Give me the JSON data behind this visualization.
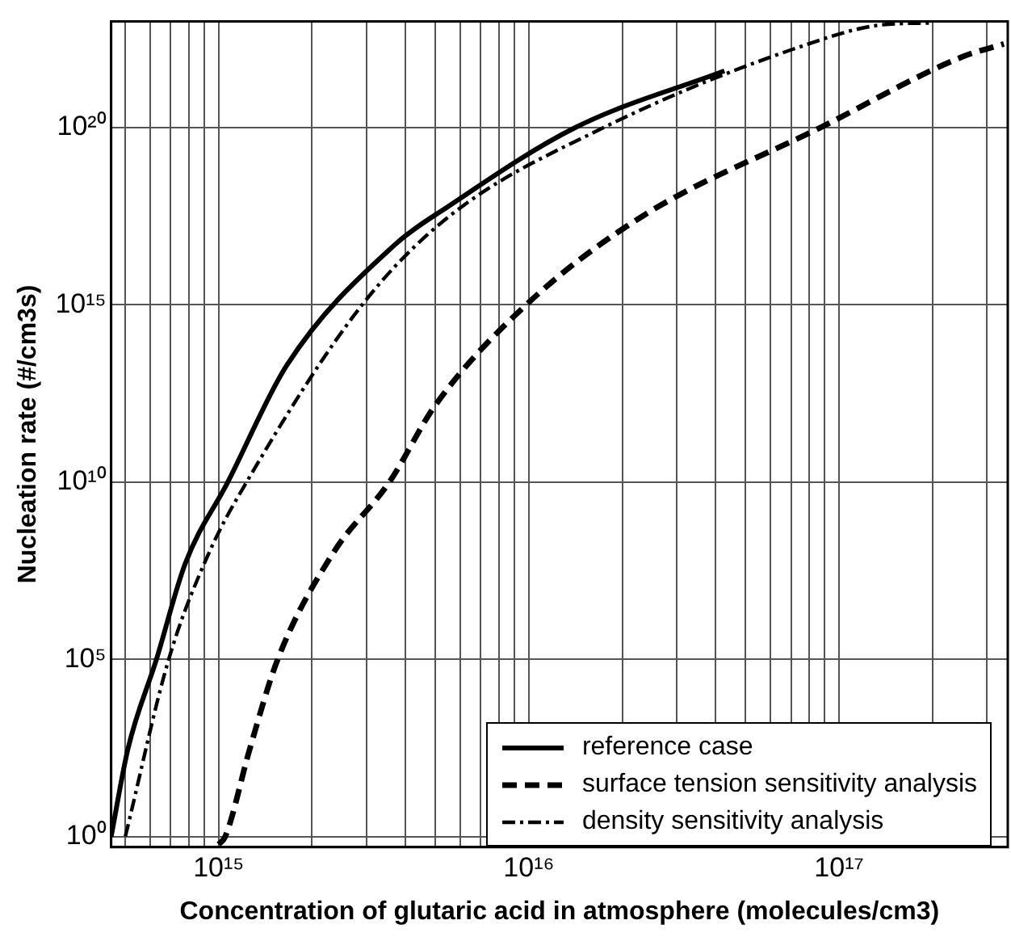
{
  "chart_data": {
    "type": "line",
    "xlabel": "Concentration of glutaric acid in atmosphere (molecules/cm3)",
    "ylabel": "Nucleation rate (#/cm3s)",
    "log": "xy",
    "grid": true,
    "legend": "bottom right",
    "marker": "none",
    "xlim": [
      450000000000000.0,
      3.5e+17
    ],
    "ylim": [
      0.5,
      1e+23
    ],
    "xticks": [
      {
        "value": 500000000000000.0,
        "label": null
      },
      {
        "value": 600000000000000.0,
        "label": null
      },
      {
        "value": 700000000000000.0,
        "label": null
      },
      {
        "value": 800000000000000.0,
        "label": null
      },
      {
        "value": 900000000000000.0,
        "label": null
      },
      {
        "value": 1000000000000000.0,
        "label": "10¹⁵"
      },
      {
        "value": 2000000000000000.0,
        "label": null
      },
      {
        "value": 3000000000000000.0,
        "label": null
      },
      {
        "value": 4000000000000000.0,
        "label": null
      },
      {
        "value": 5000000000000000.0,
        "label": null
      },
      {
        "value": 6000000000000000.0,
        "label": null
      },
      {
        "value": 7000000000000000.0,
        "label": null
      },
      {
        "value": 8000000000000000.0,
        "label": null
      },
      {
        "value": 9000000000000000.0,
        "label": null
      },
      {
        "value": 1e+16,
        "label": "10¹⁶"
      },
      {
        "value": 2e+16,
        "label": null
      },
      {
        "value": 3e+16,
        "label": null
      },
      {
        "value": 4e+16,
        "label": null
      },
      {
        "value": 5e+16,
        "label": null
      },
      {
        "value": 6e+16,
        "label": null
      },
      {
        "value": 7e+16,
        "label": null
      },
      {
        "value": 8e+16,
        "label": null
      },
      {
        "value": 9e+16,
        "label": null
      },
      {
        "value": 1e+17,
        "label": "10¹⁷"
      },
      {
        "value": 2e+17,
        "label": null
      },
      {
        "value": 3e+17,
        "label": null
      }
    ],
    "yticks": [
      {
        "value": 1,
        "label": "10⁰"
      },
      {
        "value": 100000.0,
        "label": "10⁵"
      },
      {
        "value": 10000000000.0,
        "label": "10¹⁰"
      },
      {
        "value": 1000000000000000.0,
        "label": "10¹⁵"
      },
      {
        "value": 1e+20,
        "label": "10²⁰"
      }
    ],
    "series": [
      {
        "name": "reference case",
        "color": "#000000",
        "line_style": "solid",
        "x": [
          450000000000000.0,
          510000000000000.0,
          630000000000000.0,
          780000000000000.0,
          1070000000000000.0,
          1660000000000000.0,
          3700000000000000.0,
          5500000000000000.0,
          1.41e+16,
          4.27e+16
        ],
        "values": [
          1,
          300.0,
          100000.0,
          50000000.0,
          10000000000.0,
          20000000000000.0,
          5e+16,
          6e+17,
          1e+20,
          4e+21
        ]
      },
      {
        "name": "surface tension sensitivity analysis",
        "color": "#000000",
        "line_style": "dashed",
        "x": [
          1000000000000000.0,
          1050000000000000.0,
          1260000000000000.0,
          1550000000000000.0,
          2340000000000000.0,
          3550000000000000.0,
          5000000000000000.0,
          9800000000000000.0,
          2.3e+16,
          8.7e+16,
          2.5e+17,
          3.4e+17
        ],
        "values": [
          0.6,
          1,
          300.0,
          100000.0,
          100000000.0,
          10000000000.0,
          1500000000000.0,
          1000000000000000.0,
          3e+17,
          1e+20,
          1e+22,
          2.3e+22
        ]
      },
      {
        "name": "density sensitivity analysis",
        "color": "#000000",
        "line_style": "dashdot",
        "x": [
          500000000000000.0,
          690000000000000.0,
          930000000000000.0,
          1230000000000000.0,
          2900000000000000.0,
          5500000000000000.0,
          1.74e+16,
          7.6e+16,
          1.38e+17,
          2e+17
        ],
        "values": [
          1,
          100000.0,
          100000000.0,
          10000000000.0,
          1000000000000000.0,
          3e+17,
          1e+20,
          2e+22,
          8e+22,
          9e+22
        ]
      }
    ]
  }
}
